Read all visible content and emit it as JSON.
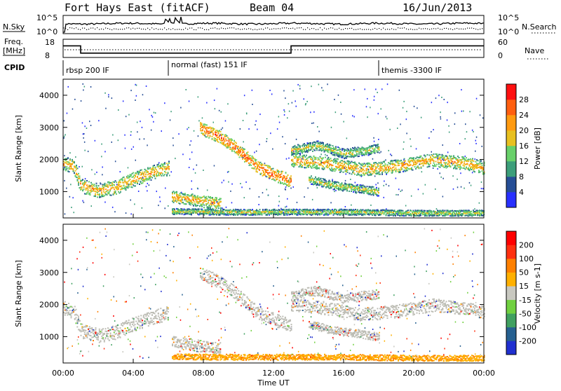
{
  "header": {
    "radar_title": "Fort Hays East (fitACF)",
    "beam": "Beam 04",
    "date": "16/Jun/2013"
  },
  "chart_data": [
    {
      "type": "line",
      "panel": "noise",
      "left_label": "N.Sky",
      "right_label": "N.Search",
      "y_ticks_left": [
        "10^5",
        "10^0"
      ],
      "y_ticks_right": [
        "10^5",
        "10^0"
      ],
      "x_range_hours": [
        0,
        24
      ]
    },
    {
      "type": "line",
      "panel": "frequency",
      "left_label_1": "Freq.",
      "left_label_2": "[MHz]",
      "y_ticks_left": [
        "18",
        "8"
      ],
      "right_label": "Nave",
      "y_ticks_right": [
        "60",
        "0"
      ],
      "freq_steps": [
        {
          "start": 0.0,
          "end": 1.0,
          "value": 14.4
        },
        {
          "start": 1.0,
          "end": 13.0,
          "value": 10.4
        },
        {
          "start": 13.0,
          "end": 24.0,
          "value": 14.4
        }
      ],
      "freq_range": [
        8,
        18
      ]
    },
    {
      "type": "table",
      "panel": "cpid",
      "label": "CPID",
      "segments": [
        {
          "start": 0.0,
          "text": "rbsp 200 IF"
        },
        {
          "start": 6.0,
          "text": "normal (fast) 151 IF"
        },
        {
          "start": 18.0,
          "text": "themis -3300 IF"
        }
      ]
    },
    {
      "type": "heatmap",
      "panel": "power",
      "ylabel": "Slant Range [km]",
      "ylim": [
        180,
        4500
      ],
      "y_ticks": [
        1000,
        2000,
        3000,
        4000
      ],
      "xlim": [
        0,
        24
      ],
      "colorbar_label": "Power [dB]",
      "colorbar_ticks": [
        "4",
        "8",
        "12",
        "16",
        "20",
        "24",
        "28"
      ],
      "colors": [
        "#2830ff",
        "#264e96",
        "#3c9e7a",
        "#68d06a",
        "#e8c020",
        "#ff9a10",
        "#ff5f10",
        "#ff1010"
      ],
      "features": [
        {
          "type": "curve",
          "points": [
            [
              0,
              1900
            ],
            [
              0.6,
              1800
            ],
            [
              1.0,
              1200
            ],
            [
              2.0,
              1050
            ],
            [
              3.0,
              1150
            ],
            [
              4.0,
              1400
            ],
            [
              5.0,
              1600
            ],
            [
              6.0,
              1750
            ]
          ],
          "width": 220,
          "level": 3
        },
        {
          "type": "curve",
          "points": [
            [
              7.8,
              3000
            ],
            [
              9.0,
              2700
            ],
            [
              10.0,
              2300
            ],
            [
              11.0,
              1800
            ],
            [
              12.0,
              1550
            ],
            [
              13.0,
              1350
            ]
          ],
          "width": 200,
          "level": 4
        },
        {
          "type": "curve",
          "points": [
            [
              13.0,
              2000
            ],
            [
              15.0,
              1900
            ],
            [
              17.0,
              1700
            ],
            [
              19.0,
              1800
            ],
            [
              21.0,
              2000
            ],
            [
              23.0,
              1900
            ],
            [
              24.0,
              1750
            ]
          ],
          "width": 200,
          "level": 3
        },
        {
          "type": "curve",
          "points": [
            [
              13.0,
              2300
            ],
            [
              14.5,
              2450
            ],
            [
              16.0,
              2200
            ],
            [
              18.0,
              2350
            ]
          ],
          "width": 150,
          "level": 2
        },
        {
          "type": "curve",
          "points": [
            [
              14.0,
              1400
            ],
            [
              15.5,
              1200
            ],
            [
              17.0,
              1100
            ],
            [
              18.0,
              1000
            ]
          ],
          "width": 130,
          "level": 2
        },
        {
          "type": "curve",
          "points": [
            [
              6.2,
              850
            ],
            [
              7.0,
              800
            ],
            [
              8.0,
              700
            ],
            [
              9.0,
              650
            ]
          ],
          "width": 180,
          "level": 3
        },
        {
          "type": "curve",
          "points": [
            [
              6.2,
              400
            ],
            [
              9.0,
              380
            ],
            [
              12.0,
              380
            ],
            [
              13.0,
              380
            ],
            [
              16.0,
              380
            ],
            [
              20.0,
              350
            ],
            [
              24.0,
              350
            ]
          ],
          "width": 90,
          "level": 2
        }
      ]
    },
    {
      "type": "heatmap",
      "panel": "velocity",
      "ylabel": "Slant Range [km]",
      "ylim": [
        180,
        4500
      ],
      "y_ticks": [
        1000,
        2000,
        3000,
        4000
      ],
      "xlim": [
        0,
        24
      ],
      "colorbar_label": "Velocity [m s-1]",
      "colorbar_ticks": [
        "200",
        "100",
        "50",
        "15",
        "-15",
        "-50",
        "-100",
        "-200"
      ],
      "colors": [
        "#2030d0",
        "#266090",
        "#40a060",
        "#70d040",
        "#c8c8c0",
        "#ffb000",
        "#ff8000",
        "#ff3010",
        "#ff0000"
      ],
      "ground_scatter_color": "#bdbdb5"
    },
    {
      "type": "line",
      "panel": "time-axis",
      "xlabel": "Time UT",
      "x_ticks": [
        {
          "h": 0,
          "label": "00:00"
        },
        {
          "h": 4,
          "label": "04:00"
        },
        {
          "h": 8,
          "label": "08:00"
        },
        {
          "h": 12,
          "label": "12:00"
        },
        {
          "h": 16,
          "label": "16:00"
        },
        {
          "h": 20,
          "label": "20:00"
        },
        {
          "h": 24,
          "label": "00:00"
        }
      ]
    }
  ]
}
